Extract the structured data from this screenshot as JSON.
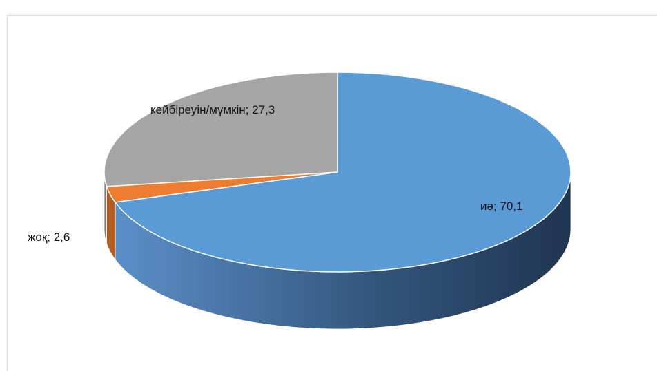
{
  "chart_data": {
    "type": "pie",
    "style": "3d",
    "title": "",
    "categories": [
      "иә",
      "жоқ",
      "кейбіреуін/мүмкін"
    ],
    "values": [
      70.1,
      2.6,
      27.3
    ],
    "labels": [
      "иә; 70,1",
      "жоқ; 2,6",
      "кейбіреуін/мүмкін; 27,3"
    ],
    "colors": [
      "#5b9bd5",
      "#ed7d31",
      "#a5a5a5"
    ],
    "legend": "none"
  }
}
